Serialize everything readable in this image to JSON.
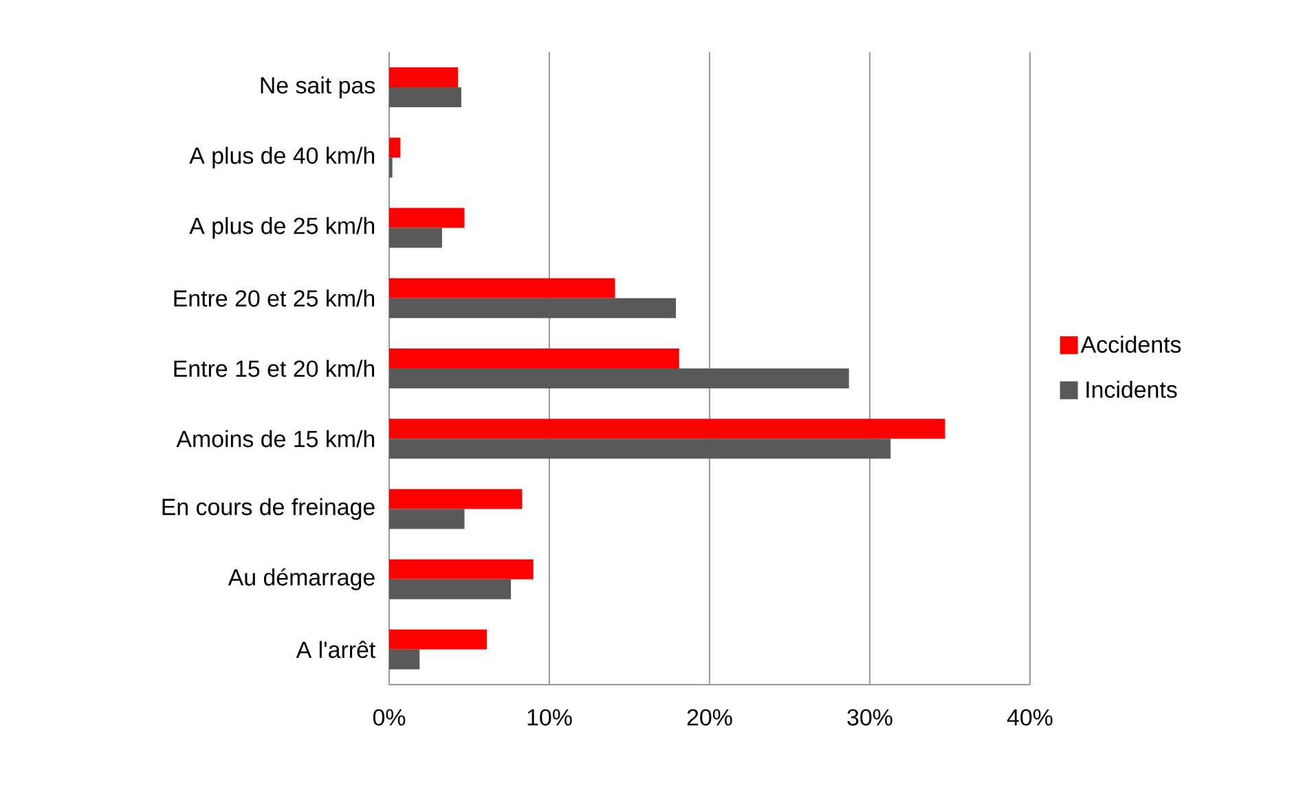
{
  "chart_data": {
    "type": "bar",
    "orientation": "horizontal",
    "categories": [
      "Ne sait pas",
      "A plus de 40 km/h",
      "A plus de 25 km/h",
      "Entre 20 et 25 km/h",
      "Entre 15 et 20 km/h",
      "Amoins de 15 km/h",
      "En cours de freinage",
      "Au démarrage",
      "A l'arrêt"
    ],
    "series": [
      {
        "name": "Accidents",
        "color": "#ff0000",
        "values": [
          4.3,
          0.7,
          4.7,
          14.1,
          18.1,
          34.7,
          8.3,
          9.0,
          6.1
        ]
      },
      {
        "name": "Incidents",
        "color": "#595959",
        "values": [
          4.5,
          0.2,
          3.3,
          17.9,
          28.7,
          31.3,
          4.7,
          7.6,
          1.9
        ]
      }
    ],
    "xlim": [
      0,
      40
    ],
    "xticks": [
      {
        "value": 0,
        "label": "0%"
      },
      {
        "value": 10,
        "label": "10%"
      },
      {
        "value": 20,
        "label": "20%"
      },
      {
        "value": 30,
        "label": "30%"
      },
      {
        "value": 40,
        "label": "40%"
      }
    ],
    "grid": "x",
    "legend": "right"
  }
}
